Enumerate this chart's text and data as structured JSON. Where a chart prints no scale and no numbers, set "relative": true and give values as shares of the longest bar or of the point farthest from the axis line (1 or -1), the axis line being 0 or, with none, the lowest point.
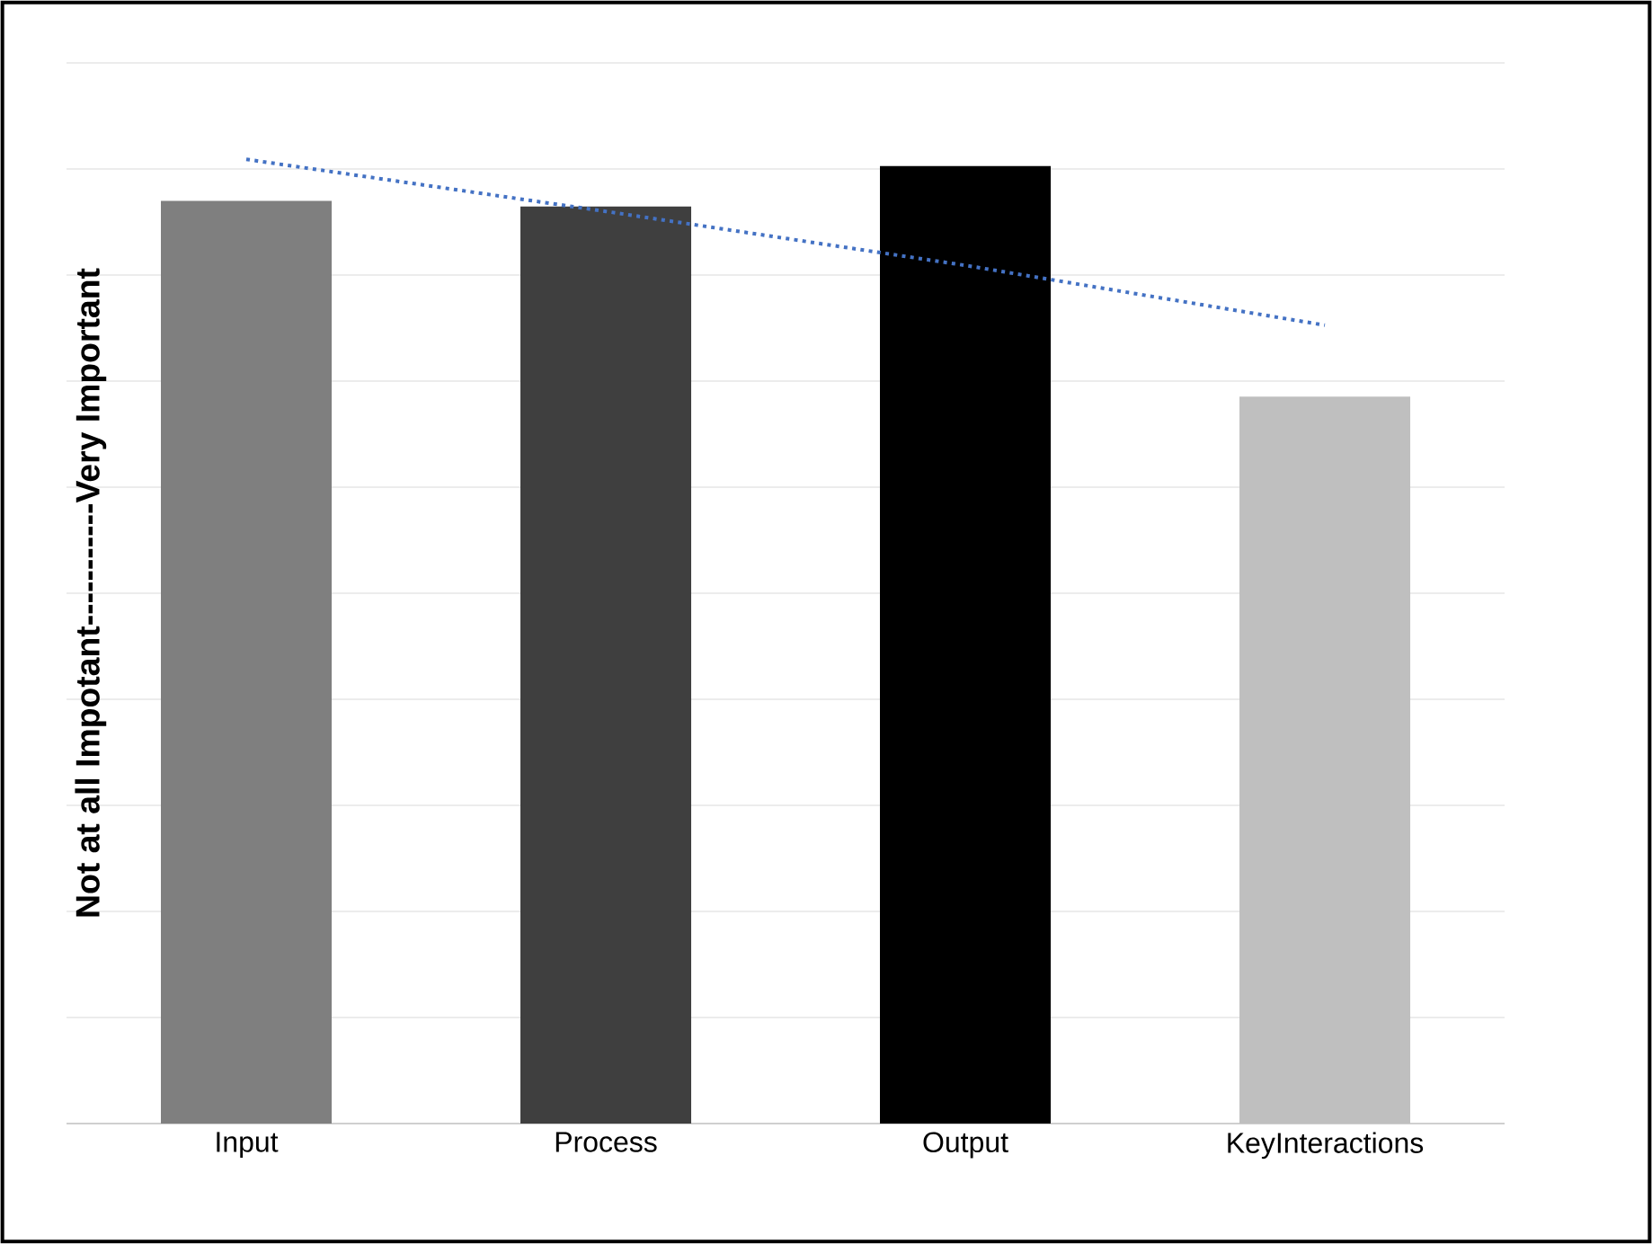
{
  "chart_data": {
    "type": "bar",
    "relative": true,
    "ylabel": "Not at all Impotant-----------Very Important",
    "categories": [
      "Input",
      "Process",
      "Output",
      "KeyInteractions"
    ],
    "grid": "y",
    "series": [
      {
        "colors": [
          "#7f7f7f",
          "#3f3f3f",
          "#000000",
          "#bfbfbf"
        ],
        "values": [
          0.957,
          0.951,
          0.993,
          0.754
        ]
      },
      {
        "type": "line",
        "color": "#4472c4",
        "line_style": "dotted",
        "marker": "none",
        "values": [
          1.0,
          0.946,
          0.89,
          0.828
        ]
      }
    ]
  }
}
